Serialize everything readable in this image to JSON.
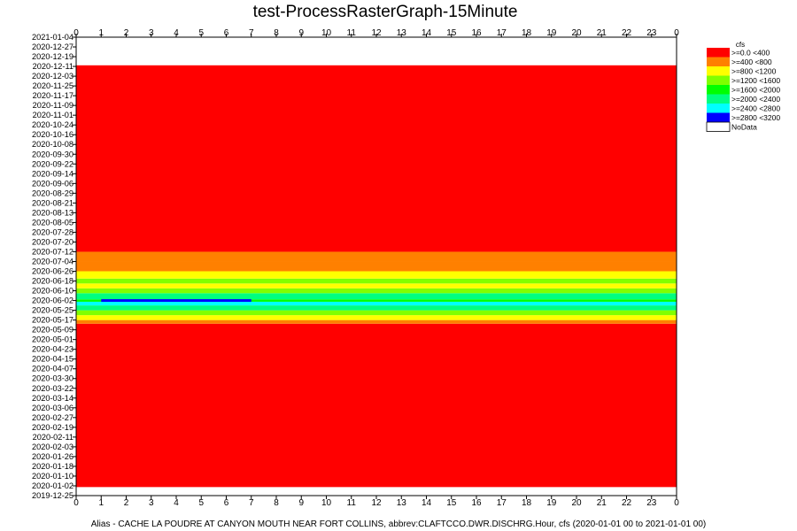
{
  "chart_data": {
    "type": "heatmap",
    "title": "test-ProcessRasterGraph-15Minute",
    "footer": "Alias - CACHE LA POUDRE AT CANYON MOUTH NEAR FORT COLLINS, abbrev:CLAFTCCO.DWR.DISCHRG.Hour, cfs (2020-01-01 00 to 2021-01-01 00)",
    "x_ticks": [
      "0",
      "1",
      "2",
      "3",
      "4",
      "5",
      "6",
      "7",
      "8",
      "9",
      "10",
      "11",
      "12",
      "13",
      "14",
      "15",
      "16",
      "17",
      "18",
      "19",
      "20",
      "21",
      "22",
      "23",
      "0"
    ],
    "y_ticks": [
      "2021-01-04",
      "2020-12-27",
      "2020-12-19",
      "2020-12-11",
      "2020-12-03",
      "2020-11-25",
      "2020-11-17",
      "2020-11-09",
      "2020-11-01",
      "2020-10-24",
      "2020-10-16",
      "2020-10-08",
      "2020-09-30",
      "2020-09-22",
      "2020-09-14",
      "2020-09-06",
      "2020-08-29",
      "2020-08-21",
      "2020-08-13",
      "2020-08-05",
      "2020-07-28",
      "2020-07-20",
      "2020-07-12",
      "2020-07-04",
      "2020-06-26",
      "2020-06-18",
      "2020-06-10",
      "2020-06-02",
      "2020-05-25",
      "2020-05-17",
      "2020-05-09",
      "2020-05-01",
      "2020-04-23",
      "2020-04-15",
      "2020-04-07",
      "2020-03-30",
      "2020-03-22",
      "2020-03-14",
      "2020-03-06",
      "2020-02-27",
      "2020-02-19",
      "2020-02-11",
      "2020-02-03",
      "2020-01-26",
      "2020-01-18",
      "2020-01-10",
      "2020-01-02",
      "2019-12-25"
    ],
    "legend_title": "cfs",
    "legend": [
      {
        "label": ">=0.0 <400",
        "color": "#ff0000"
      },
      {
        "label": ">=400 <800",
        "color": "#ff8000"
      },
      {
        "label": ">=800 <1200",
        "color": "#ffff00"
      },
      {
        "label": ">=1200 <1600",
        "color": "#80ff00"
      },
      {
        "label": ">=1600 <2000",
        "color": "#00ff00"
      },
      {
        "label": ">=2000 <2400",
        "color": "#00ff80"
      },
      {
        "label": ">=2400 <2800",
        "color": "#00ffff"
      },
      {
        "label": ">=2800 <3200",
        "color": "#0000ff"
      },
      {
        "label": "NoData",
        "color": "#ffffff"
      }
    ],
    "bands": [
      {
        "from": "2020-01-01",
        "to": "2020-05-14",
        "class": 0
      },
      {
        "from": "2020-05-14",
        "to": "2020-05-17",
        "class": 1
      },
      {
        "from": "2020-05-17",
        "to": "2020-05-21",
        "class": 2
      },
      {
        "from": "2020-05-21",
        "to": "2020-05-25",
        "class": 3
      },
      {
        "from": "2020-05-25",
        "to": "2020-05-29",
        "class": 5
      },
      {
        "from": "2020-05-29",
        "to": "2020-06-01",
        "class": 6
      },
      {
        "from": "2020-06-01",
        "to": "2020-06-03",
        "class": 4
      },
      {
        "from": "2020-06-03",
        "to": "2020-06-08",
        "class": 5
      },
      {
        "from": "2020-06-08",
        "to": "2020-06-12",
        "class": 3
      },
      {
        "from": "2020-06-12",
        "to": "2020-06-16",
        "class": 2
      },
      {
        "from": "2020-06-16",
        "to": "2020-06-20",
        "class": 3
      },
      {
        "from": "2020-06-20",
        "to": "2020-06-26",
        "class": 2
      },
      {
        "from": "2020-06-26",
        "to": "2020-07-04",
        "class": 1
      },
      {
        "from": "2020-07-04",
        "to": "2020-07-12",
        "class": 1
      },
      {
        "from": "2020-07-12",
        "to": "2020-12-12",
        "class": 0
      },
      {
        "from": "2020-12-12",
        "to": "2021-01-01",
        "class": 8
      }
    ],
    "streaks": [
      {
        "date": "2020-06-02",
        "hour_from": 1,
        "hour_to": 7,
        "class": 7
      }
    ]
  }
}
